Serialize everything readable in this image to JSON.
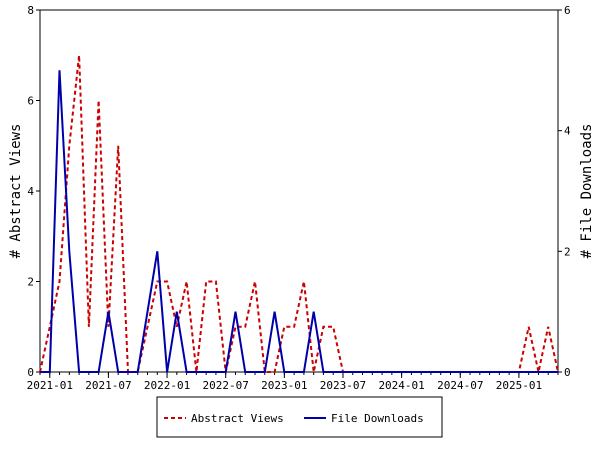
{
  "chart_data": {
    "type": "line",
    "title": "",
    "xlabel": "",
    "ylabel": "# Abstract Views",
    "y2label": "# File Downloads",
    "x_tick_labels": [
      "2021-01",
      "2021-07",
      "2022-01",
      "2022-07",
      "2023-01",
      "2023-07",
      "2024-01",
      "2024-07",
      "2025-01"
    ],
    "y_ticks": [
      "0",
      "2",
      "4",
      "6",
      "8"
    ],
    "y2_ticks": [
      "0",
      "2",
      "4",
      "6"
    ],
    "ylim": [
      0,
      8
    ],
    "y2lim": [
      0,
      6
    ],
    "grid": false,
    "legend_placement": "bottom-center",
    "x_months": [
      "2020-12",
      "2021-01",
      "2021-02",
      "2021-03",
      "2021-04",
      "2021-05",
      "2021-06",
      "2021-07",
      "2021-08",
      "2021-09",
      "2021-10",
      "2021-11",
      "2021-12",
      "2022-01",
      "2022-02",
      "2022-03",
      "2022-04",
      "2022-05",
      "2022-06",
      "2022-07",
      "2022-08",
      "2022-09",
      "2022-10",
      "2022-11",
      "2022-12",
      "2023-01",
      "2023-02",
      "2023-03",
      "2023-04",
      "2023-05",
      "2023-06",
      "2023-07",
      "2023-08",
      "2023-09",
      "2023-10",
      "2023-11",
      "2023-12",
      "2024-01",
      "2024-02",
      "2024-03",
      "2024-04",
      "2024-05",
      "2024-06",
      "2024-07",
      "2024-08",
      "2024-09",
      "2024-10",
      "2024-11",
      "2024-12",
      "2025-01",
      "2025-02",
      "2025-03",
      "2025-04",
      "2025-05"
    ],
    "series": [
      {
        "name": "Abstract Views",
        "axis": "left",
        "color": "#cc0000",
        "dash": true,
        "values": [
          0,
          1,
          2,
          5,
          7,
          1,
          6,
          1,
          5,
          0,
          0,
          1,
          2,
          2,
          1,
          2,
          0,
          2,
          2,
          0,
          1,
          1,
          2,
          0,
          0,
          1,
          1,
          2,
          0,
          1,
          1,
          0,
          0,
          0,
          0,
          0,
          0,
          0,
          0,
          0,
          0,
          0,
          0,
          0,
          0,
          0,
          0,
          0,
          0,
          0,
          1,
          0,
          1,
          0
        ]
      },
      {
        "name": "File Downloads",
        "axis": "right",
        "color": "#0000aa",
        "dash": false,
        "values": [
          0,
          0,
          5,
          2,
          0,
          0,
          0,
          1,
          0,
          0,
          0,
          1,
          2,
          0,
          1,
          0,
          0,
          0,
          0,
          0,
          1,
          0,
          0,
          0,
          1,
          0,
          0,
          0,
          1,
          0,
          0,
          0,
          0,
          0,
          0,
          0,
          0,
          0,
          0,
          0,
          0,
          0,
          0,
          0,
          0,
          0,
          0,
          0,
          0,
          0,
          0,
          0,
          0,
          0
        ]
      }
    ]
  }
}
